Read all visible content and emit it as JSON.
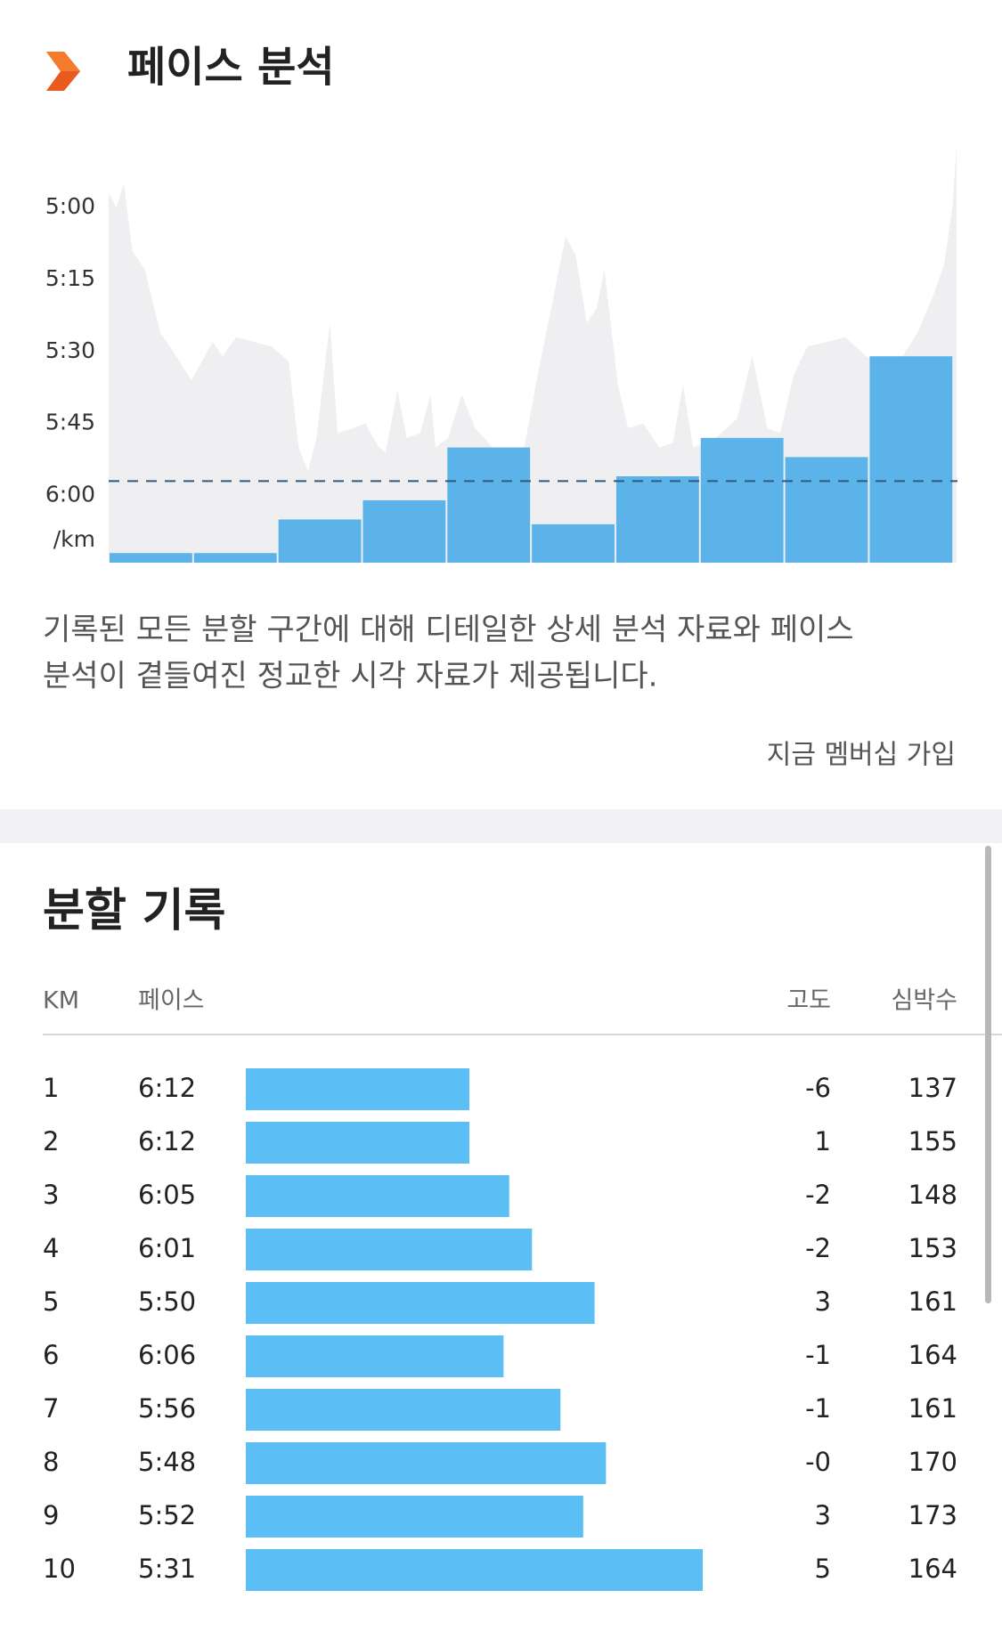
{
  "header": {
    "title": "페이스 분석"
  },
  "chart_data": {
    "type": "bar",
    "y_label": "/km",
    "categories": [
      null,
      null,
      null,
      null,
      null,
      null,
      null,
      null,
      null,
      null
    ],
    "values": [
      372,
      372,
      365,
      361,
      350,
      366,
      356,
      348,
      352,
      331
    ],
    "color": "#5bb3e9",
    "average": 357,
    "average_color": "#2d5a7e",
    "stream": {
      "color": "#efeff1",
      "x": [
        0,
        0.09,
        0.18,
        0.28,
        0.43,
        0.61,
        0.8,
        0.98,
        1.23,
        1.35,
        1.51,
        1.72,
        1.93,
        2.13,
        2.25,
        2.36,
        2.46,
        2.62,
        2.71,
        2.89,
        3.04,
        3.2,
        3.28,
        3.42,
        3.53,
        3.69,
        3.81,
        3.87,
        4.02,
        4.18,
        4.34,
        4.55,
        4.73,
        4.92,
        5.1,
        5.23,
        5.41,
        5.53,
        5.66,
        5.78,
        5.87,
        6.03,
        6.15,
        6.33,
        6.52,
        6.68,
        6.8,
        6.92,
        7.19,
        7.44,
        7.62,
        7.8,
        7.95,
        8.11,
        8.27,
        8.51,
        8.72,
        8.97,
        9.21,
        9.4,
        9.58,
        9.77,
        9.89,
        9.99,
        10.04
      ],
      "values": [
        297,
        300,
        295,
        309,
        313,
        326,
        331,
        336,
        328,
        331,
        327,
        328,
        329,
        332,
        350,
        355,
        348,
        324,
        347,
        346,
        345,
        350,
        351,
        338,
        348,
        347,
        339,
        350,
        348,
        339,
        346,
        350,
        351,
        350,
        333,
        322,
        306,
        310,
        324,
        321,
        313,
        337,
        346,
        345,
        350,
        349,
        337,
        350,
        348,
        344,
        331,
        346,
        347,
        335,
        329,
        328,
        327,
        331,
        333,
        331,
        326,
        318,
        312,
        300,
        287
      ]
    },
    "xlim": [
      0,
      10.05
    ],
    "ylim": [
      287,
      374
    ],
    "y_inverted": true,
    "yticks": [
      {
        "value": 300,
        "label": "5:00"
      },
      {
        "value": 315,
        "label": "5:15"
      },
      {
        "value": 330,
        "label": "5:30"
      },
      {
        "value": 345,
        "label": "5:45"
      },
      {
        "value": 360,
        "label": "6:00"
      }
    ]
  },
  "description": [
    "기록된 모든 분할 구간에 대해 디테일한 상세 분석 자료와 페이스",
    "분석이 곁들여진 정교한 시각 자료가 제공됩니다."
  ],
  "cta": "지금 멤버십 가입",
  "splits": {
    "title": "분할 기록",
    "columns": [
      "KM",
      "페이스",
      "고도",
      "심박수"
    ],
    "bar_color": "#5bbff5",
    "rows": [
      {
        "km": 1,
        "pace": {
          "value": 372,
          "label": "6:12"
        },
        "elev": -6,
        "hr": 137
      },
      {
        "km": 2,
        "pace": {
          "value": 372,
          "label": "6:12"
        },
        "elev": 1,
        "hr": 155
      },
      {
        "km": 3,
        "pace": {
          "value": 365,
          "label": "6:05"
        },
        "elev": -2,
        "hr": 148
      },
      {
        "km": 4,
        "pace": {
          "value": 361,
          "label": "6:01"
        },
        "elev": -2,
        "hr": 153
      },
      {
        "km": 5,
        "pace": {
          "value": 350,
          "label": "5:50"
        },
        "elev": 3,
        "hr": 161
      },
      {
        "km": 6,
        "pace": {
          "value": 366,
          "label": "6:06"
        },
        "elev": -1,
        "hr": 164
      },
      {
        "km": 7,
        "pace": {
          "value": 356,
          "label": "5:56"
        },
        "elev": -1,
        "hr": 161
      },
      {
        "km": 8,
        "pace": {
          "value": 348,
          "label": "5:48"
        },
        "elev": {
          "value": 0,
          "label": "-0"
        },
        "hr": 170
      },
      {
        "km": 9,
        "pace": {
          "value": 352,
          "label": "5:52"
        },
        "elev": 3,
        "hr": 173
      },
      {
        "km": 10,
        "pace": {
          "value": 331,
          "label": "5:31"
        },
        "elev": 5,
        "hr": 164
      }
    ]
  }
}
